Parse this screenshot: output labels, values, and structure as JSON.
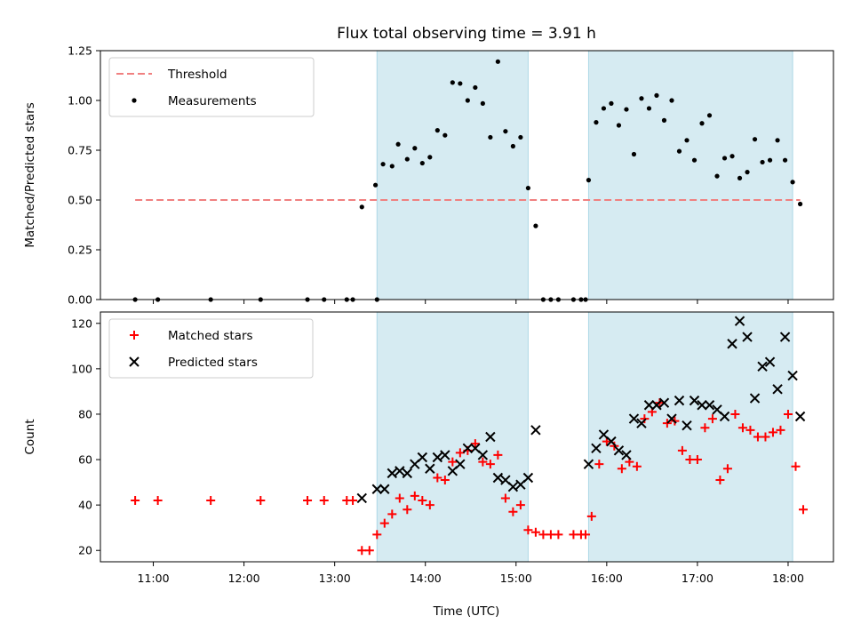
{
  "chart_data": {
    "type": "scatter",
    "title": "Flux total observing time = 3.91 h",
    "xlabel": "Time (UTC)",
    "xlim": [
      "10:25",
      "18:30"
    ],
    "x_ticks": [
      "11:00",
      "12:00",
      "13:00",
      "14:00",
      "15:00",
      "16:00",
      "17:00",
      "18:00"
    ],
    "shaded_intervals": [
      [
        "13:28",
        "15:08"
      ],
      [
        "15:48",
        "18:03"
      ]
    ],
    "shade_color": "#add8e6",
    "panels": [
      {
        "ylabel": "Matched/Predicted stars",
        "ylim": [
          0,
          1.25
        ],
        "y_ticks": [
          "0.00",
          "0.25",
          "0.50",
          "0.75",
          "1.00",
          "1.25"
        ],
        "legend_position": "top-left",
        "threshold": {
          "name": "Threshold",
          "y": 0.5,
          "x_range": [
            "10:48",
            "18:08"
          ],
          "color": "#f08080",
          "style": "dashed"
        },
        "series": [
          {
            "name": "Measurements",
            "marker": "dot",
            "color": "#000000",
            "points": [
              [
                "10:48",
                0
              ],
              [
                "11:03",
                0
              ],
              [
                "11:38",
                0
              ],
              [
                "12:11",
                0
              ],
              [
                "12:42",
                0
              ],
              [
                "12:53",
                0
              ],
              [
                "13:08",
                0
              ],
              [
                "13:12",
                0
              ],
              [
                "13:18",
                0.465
              ],
              [
                "13:28",
                0
              ],
              [
                "13:27",
                0.575
              ],
              [
                "13:32",
                0.68
              ],
              [
                "13:38",
                0.67
              ],
              [
                "13:42",
                0.78
              ],
              [
                "13:48",
                0.705
              ],
              [
                "13:53",
                0.76
              ],
              [
                "13:58",
                0.685
              ],
              [
                "14:03",
                0.715
              ],
              [
                "14:08",
                0.85
              ],
              [
                "14:13",
                0.825
              ],
              [
                "14:18",
                1.09
              ],
              [
                "14:23",
                1.085
              ],
              [
                "14:28",
                1.0
              ],
              [
                "14:33",
                1.065
              ],
              [
                "14:38",
                0.985
              ],
              [
                "14:43",
                0.815
              ],
              [
                "14:48",
                1.195
              ],
              [
                "14:53",
                0.845
              ],
              [
                "14:58",
                0.77
              ],
              [
                "15:03",
                0.815
              ],
              [
                "15:08",
                0.56
              ],
              [
                "15:13",
                0.37
              ],
              [
                "15:18",
                0
              ],
              [
                "15:23",
                0
              ],
              [
                "15:28",
                0
              ],
              [
                "15:38",
                0
              ],
              [
                "15:43",
                0
              ],
              [
                "15:46",
                0
              ],
              [
                "15:48",
                0.6
              ],
              [
                "15:53",
                0.89
              ],
              [
                "15:58",
                0.96
              ],
              [
                "16:03",
                0.985
              ],
              [
                "16:08",
                0.875
              ],
              [
                "16:13",
                0.955
              ],
              [
                "16:18",
                0.73
              ],
              [
                "16:23",
                1.01
              ],
              [
                "16:28",
                0.96
              ],
              [
                "16:33",
                1.025
              ],
              [
                "16:38",
                0.9
              ],
              [
                "16:43",
                1.0
              ],
              [
                "16:48",
                0.745
              ],
              [
                "16:53",
                0.8
              ],
              [
                "16:58",
                0.7
              ],
              [
                "17:03",
                0.885
              ],
              [
                "17:08",
                0.925
              ],
              [
                "17:13",
                0.62
              ],
              [
                "17:18",
                0.71
              ],
              [
                "17:23",
                0.72
              ],
              [
                "17:28",
                0.61
              ],
              [
                "17:33",
                0.64
              ],
              [
                "17:38",
                0.805
              ],
              [
                "17:43",
                0.69
              ],
              [
                "17:48",
                0.7
              ],
              [
                "17:53",
                0.8
              ],
              [
                "17:58",
                0.7
              ],
              [
                "18:03",
                0.59
              ],
              [
                "18:08",
                0.48
              ]
            ]
          }
        ]
      },
      {
        "ylabel": "Count",
        "ylim": [
          15,
          125
        ],
        "y_ticks": [
          "20",
          "40",
          "60",
          "80",
          "100",
          "120"
        ],
        "legend_position": "top-left",
        "series": [
          {
            "name": "Matched stars",
            "marker": "plus",
            "color": "#ff0000",
            "points": [
              [
                "10:48",
                42
              ],
              [
                "11:03",
                42
              ],
              [
                "11:38",
                42
              ],
              [
                "12:11",
                42
              ],
              [
                "12:42",
                42
              ],
              [
                "12:53",
                42
              ],
              [
                "13:08",
                42
              ],
              [
                "13:12",
                42
              ],
              [
                "13:18",
                20
              ],
              [
                "13:23",
                20
              ],
              [
                "13:28",
                27
              ],
              [
                "13:33",
                32
              ],
              [
                "13:38",
                36
              ],
              [
                "13:43",
                43
              ],
              [
                "13:48",
                38
              ],
              [
                "13:53",
                44
              ],
              [
                "13:58",
                42
              ],
              [
                "14:03",
                40
              ],
              [
                "14:08",
                52
              ],
              [
                "14:13",
                51
              ],
              [
                "14:18",
                59
              ],
              [
                "14:23",
                63
              ],
              [
                "14:28",
                64
              ],
              [
                "14:33",
                67
              ],
              [
                "14:38",
                59
              ],
              [
                "14:43",
                58
              ],
              [
                "14:48",
                62
              ],
              [
                "14:53",
                43
              ],
              [
                "14:58",
                37
              ],
              [
                "15:03",
                40
              ],
              [
                "15:08",
                29
              ],
              [
                "15:13",
                28
              ],
              [
                "15:18",
                27
              ],
              [
                "15:23",
                27
              ],
              [
                "15:28",
                27
              ],
              [
                "15:38",
                27
              ],
              [
                "15:43",
                27
              ],
              [
                "15:46",
                27
              ],
              [
                "15:50",
                35
              ],
              [
                "15:55",
                58
              ],
              [
                "16:00",
                68
              ],
              [
                "16:05",
                66
              ],
              [
                "16:10",
                56
              ],
              [
                "16:15",
                59
              ],
              [
                "16:20",
                57
              ],
              [
                "16:25",
                78
              ],
              [
                "16:30",
                81
              ],
              [
                "16:35",
                85
              ],
              [
                "16:40",
                76
              ],
              [
                "16:45",
                77
              ],
              [
                "16:50",
                64
              ],
              [
                "16:55",
                60
              ],
              [
                "17:00",
                60
              ],
              [
                "17:05",
                74
              ],
              [
                "17:10",
                78
              ],
              [
                "17:15",
                51
              ],
              [
                "17:20",
                56
              ],
              [
                "17:25",
                80
              ],
              [
                "17:30",
                74
              ],
              [
                "17:35",
                73
              ],
              [
                "17:40",
                70
              ],
              [
                "17:45",
                70
              ],
              [
                "17:50",
                72
              ],
              [
                "17:55",
                73
              ],
              [
                "18:00",
                80
              ],
              [
                "18:05",
                57
              ],
              [
                "18:10",
                38
              ]
            ]
          },
          {
            "name": "Predicted stars",
            "marker": "x",
            "color": "#000000",
            "points": [
              [
                "13:18",
                43
              ],
              [
                "13:28",
                47
              ],
              [
                "13:33",
                47
              ],
              [
                "13:38",
                54
              ],
              [
                "13:43",
                55
              ],
              [
                "13:48",
                54
              ],
              [
                "13:53",
                58
              ],
              [
                "13:58",
                61
              ],
              [
                "14:03",
                56
              ],
              [
                "14:08",
                61
              ],
              [
                "14:13",
                62
              ],
              [
                "14:18",
                55
              ],
              [
                "14:23",
                58
              ],
              [
                "14:28",
                65
              ],
              [
                "14:33",
                65
              ],
              [
                "14:38",
                62
              ],
              [
                "14:43",
                70
              ],
              [
                "14:48",
                52
              ],
              [
                "14:53",
                51
              ],
              [
                "14:58",
                48
              ],
              [
                "15:03",
                49
              ],
              [
                "15:08",
                52
              ],
              [
                "15:13",
                73
              ],
              [
                "15:48",
                58
              ],
              [
                "15:53",
                65
              ],
              [
                "15:58",
                71
              ],
              [
                "16:03",
                68
              ],
              [
                "16:08",
                64
              ],
              [
                "16:13",
                62
              ],
              [
                "16:18",
                78
              ],
              [
                "16:23",
                76
              ],
              [
                "16:28",
                84
              ],
              [
                "16:33",
                84
              ],
              [
                "16:38",
                85
              ],
              [
                "16:43",
                78
              ],
              [
                "16:48",
                86
              ],
              [
                "16:53",
                75
              ],
              [
                "16:58",
                86
              ],
              [
                "17:03",
                84
              ],
              [
                "17:08",
                84
              ],
              [
                "17:13",
                82
              ],
              [
                "17:18",
                79
              ],
              [
                "17:23",
                111
              ],
              [
                "17:28",
                121
              ],
              [
                "17:33",
                114
              ],
              [
                "17:38",
                87
              ],
              [
                "17:43",
                101
              ],
              [
                "17:48",
                103
              ],
              [
                "17:53",
                91
              ],
              [
                "17:58",
                114
              ],
              [
                "18:03",
                97
              ],
              [
                "18:08",
                79
              ]
            ]
          }
        ]
      }
    ]
  }
}
